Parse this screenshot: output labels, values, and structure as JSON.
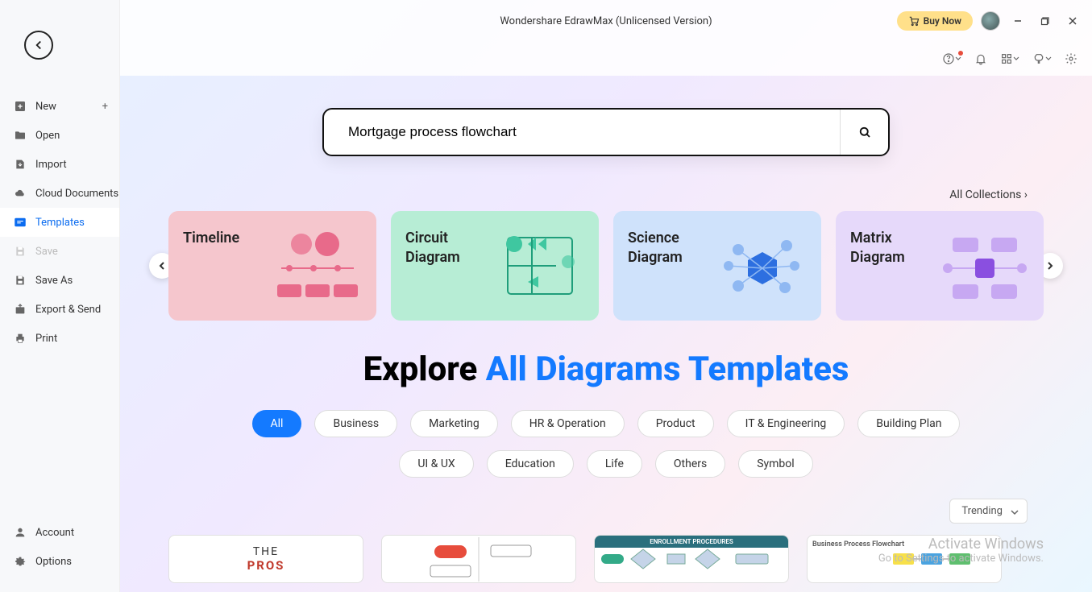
{
  "app": {
    "title": "Wondershare EdrawMax (Unlicensed Version)"
  },
  "header": {
    "buyNow": "Buy Now"
  },
  "sidebar": {
    "items": [
      {
        "label": "New",
        "icon": "plus-square-icon",
        "hasPlus": true
      },
      {
        "label": "Open",
        "icon": "folder-icon"
      },
      {
        "label": "Import",
        "icon": "import-icon"
      },
      {
        "label": "Cloud Documents",
        "icon": "cloud-icon"
      },
      {
        "label": "Templates",
        "icon": "templates-icon",
        "active": true
      },
      {
        "label": "Save",
        "icon": "save-icon",
        "disabled": true
      },
      {
        "label": "Save As",
        "icon": "save-as-icon"
      },
      {
        "label": "Export & Send",
        "icon": "export-icon"
      },
      {
        "label": "Print",
        "icon": "print-icon"
      }
    ],
    "bottom": [
      {
        "label": "Account",
        "icon": "account-icon"
      },
      {
        "label": "Options",
        "icon": "gear-icon"
      }
    ]
  },
  "search": {
    "value": "Mortgage process flowchart"
  },
  "allCollections": "All Collections",
  "categories": [
    {
      "label": "Timeline",
      "bg": "#f5c6cd"
    },
    {
      "label": "Circuit Diagram",
      "bg": "#b7edd5"
    },
    {
      "label": "Science Diagram",
      "bg": "#cfe2fb"
    },
    {
      "label": "Matrix Diagram",
      "bg": "#e6d9fa"
    }
  ],
  "explore": {
    "prefix": "Explore ",
    "highlight": "All Diagrams Templates"
  },
  "filters": [
    "All",
    "Business",
    "Marketing",
    "HR & Operation",
    "Product",
    "IT & Engineering",
    "Building Plan",
    "UI & UX",
    "Education",
    "Life",
    "Others",
    "Symbol"
  ],
  "activeFilter": "All",
  "sort": {
    "label": "Trending"
  },
  "templates": [
    {
      "t1": "THE",
      "t2": "PROS",
      "c1": "#333",
      "c2": "#c0392b"
    },
    {
      "type": "flow"
    },
    {
      "type": "enroll",
      "title": "ENROLLMENT PROCEDURES"
    },
    {
      "type": "bpf",
      "title": "Business Process Flowchart"
    }
  ],
  "watermark": {
    "t1": "Activate Windows",
    "t2": "Go to Settings to activate Windows."
  },
  "categoryArt": {
    "timeline": {
      "dotColor": "#e86a8a",
      "barColor": "#e86a8a"
    },
    "circuit": {
      "strokeColor": "#1f9e7b",
      "fillColor": "#3fc7a0"
    },
    "science": {
      "primary": "#2d6fe0",
      "secondary": "#8fb8f2"
    },
    "matrix": {
      "light": "#c7a8f2",
      "dark": "#8a4fe0"
    }
  }
}
